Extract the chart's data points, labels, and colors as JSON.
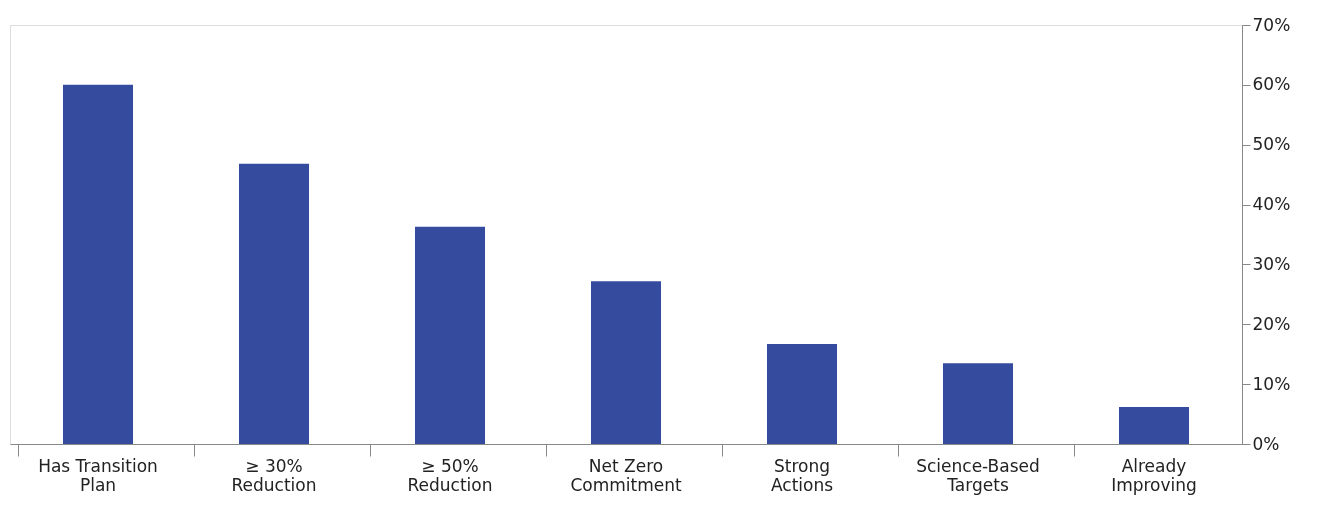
{
  "chart_data": {
    "type": "bar",
    "categories": [
      "Has Transition Plan",
      "≥ 30% Reduction",
      "≥ 50% Reduction",
      "Net Zero Commitment",
      "Strong Actions",
      "Science-Based Targets",
      "Already Improving"
    ],
    "values": [
      60.0,
      46.8,
      36.3,
      27.2,
      16.7,
      13.5,
      6.2
    ],
    "color": "#354c9e",
    "ylim": [
      0,
      70
    ],
    "yticks": [
      {
        "value": 0,
        "label": "0%"
      },
      {
        "value": 10,
        "label": "10%"
      },
      {
        "value": 20,
        "label": "20%"
      },
      {
        "value": 30,
        "label": "30%"
      },
      {
        "value": 40,
        "label": "40%"
      },
      {
        "value": 50,
        "label": "50%"
      },
      {
        "value": 60,
        "label": "60%"
      },
      {
        "value": 70,
        "label": "70%"
      }
    ],
    "grid": false
  }
}
